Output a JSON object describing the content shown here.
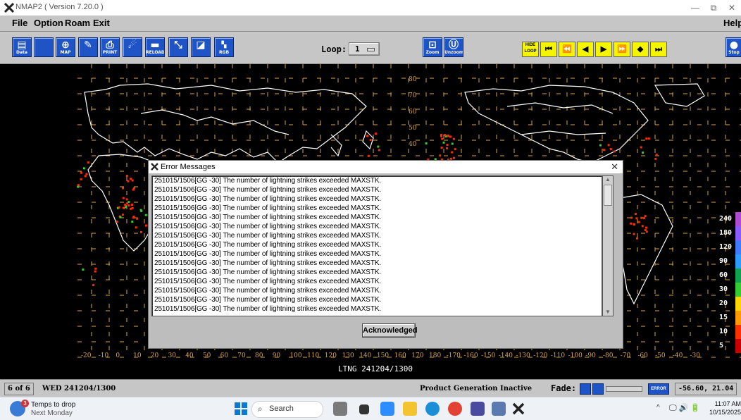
{
  "window": {
    "title": "NMAP2 ( Version 7.20.0 )",
    "minimize": "—",
    "restore": "⧉",
    "close": "✕"
  },
  "menubar": {
    "file": "File",
    "option": "Option",
    "roam": "Roam",
    "exit": "Exit",
    "help": "Help"
  },
  "toolbar": {
    "data": "Data",
    "map": "MAP",
    "print": "PRINT",
    "reload": "RELOAD",
    "rgb": "RGB",
    "loop_label": "Loop:",
    "loop_value": "1",
    "zoom": "Zoom",
    "unzoom": "Unzoom",
    "hide_loop": "HIDE LOOP",
    "stop": "Stop"
  },
  "map": {
    "lat_labels": [
      "80",
      "70",
      "60",
      "50",
      "40"
    ],
    "lon_labels": [
      "-20",
      "-10",
      "0",
      "10",
      "20",
      "30",
      "40",
      "50",
      "60",
      "70",
      "80",
      "90",
      "100",
      "110",
      "120",
      "130",
      "140",
      "150",
      "160",
      "170",
      "180",
      "-170",
      "-160",
      "-150",
      "-140",
      "-130",
      "-120",
      "-110",
      "-100",
      "-90",
      "-80",
      "-70",
      "-60",
      "-50",
      "-40",
      "-30"
    ],
    "caption": "LTNG 241204/1300",
    "colorbar": [
      "240",
      "180",
      "120",
      "90",
      "60",
      "30",
      "20",
      "15",
      "10",
      "5"
    ],
    "colors": {
      "grid": "#d9a54a",
      "coast": "#ffffff",
      "strike": "#ff2a00",
      "strike2": "#33cc33"
    }
  },
  "dialog": {
    "title": "Error Messages",
    "close": "✕",
    "messages": [
      "251015/1506[GG -30]  The number of lightning strikes exceeded MAXSTK.",
      "251015/1506[GG -30]  The number of lightning strikes exceeded MAXSTK.",
      "251015/1506[GG -30]  The number of lightning strikes exceeded MAXSTK.",
      "251015/1506[GG -30]  The number of lightning strikes exceeded MAXSTK.",
      "251015/1506[GG -30]  The number of lightning strikes exceeded MAXSTK.",
      "251015/1506[GG -30]  The number of lightning strikes exceeded MAXSTK.",
      "251015/1506[GG -30]  The number of lightning strikes exceeded MAXSTK.",
      "251015/1506[GG -30]  The number of lightning strikes exceeded MAXSTK.",
      "251015/1506[GG -30]  The number of lightning strikes exceeded MAXSTK.",
      "251015/1506[GG -30]  The number of lightning strikes exceeded MAXSTK.",
      "251015/1506[GG -30]  The number of lightning strikes exceeded MAXSTK.",
      "251015/1506[GG -30]  The number of lightning strikes exceeded MAXSTK.",
      "251015/1506[GG -30]  The number of lightning strikes exceeded MAXSTK.",
      "251015/1506[GG -30]  The number of lightning strikes exceeded MAXSTK.",
      "251015/1506[GG -30]  The number of lightning strikes exceeded MAXSTK."
    ],
    "ack_button": "Acknowledged"
  },
  "statusbar": {
    "frame": "6 of 6",
    "datetime": "WED 241204/1300",
    "product": "Product Generation Inactive",
    "fade_label": "Fade:",
    "error_badge": "ERROR",
    "coords": "-56.60, 21.04"
  },
  "taskbar": {
    "weather_badge": "3",
    "weather_title": "Temps to drop",
    "weather_sub": "Next Monday",
    "search_placeholder": "Search",
    "time": "11:07 AM",
    "date": "10/15/2025"
  }
}
